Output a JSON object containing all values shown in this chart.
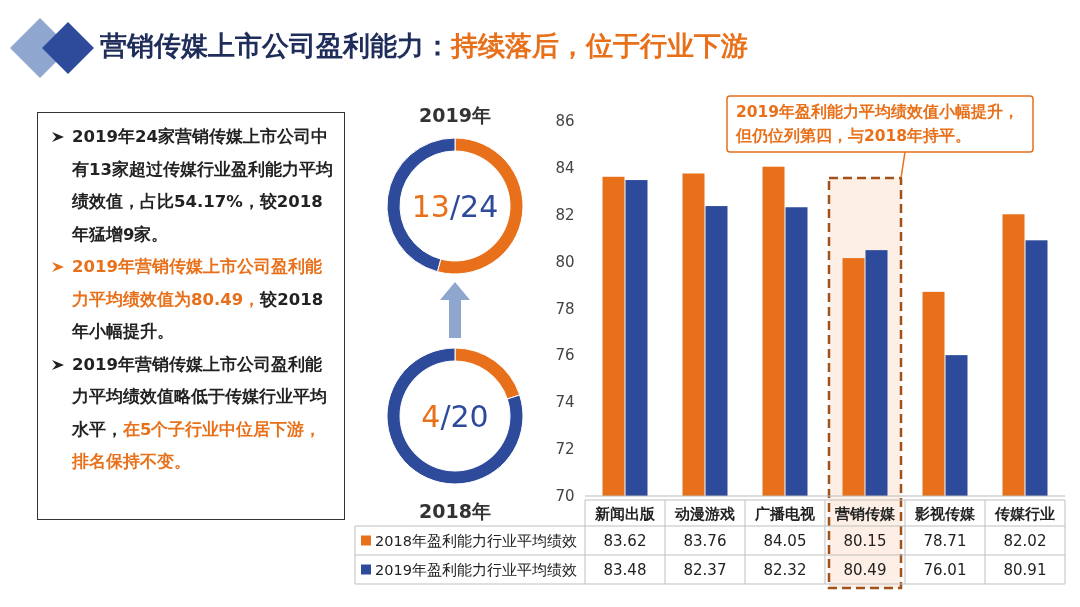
{
  "chart_data": [
    {
      "type": "other",
      "title": "营销传媒上市公司盈利能力：",
      "subtitle": "持续落后，位于行业下游",
      "annotations": [
        "2019年24家营销传媒上市公司中有13家超过传媒行业盈利能力平均绩效值，占比54.17%，较2018年猛增9家。",
        "2019年营销传媒上市公司盈利能力平均绩效值为80.49，",
        "较2018年小幅提升。",
        "2019年营销传媒上市公司盈利能力平均绩效值略低于传媒行业平均水平，",
        "在5个子行业中位居下游，排名保持不变。"
      ]
    },
    {
      "type": "donut",
      "title": "2019年",
      "categories": [
        null,
        null
      ],
      "values": [
        54.17,
        45.83
      ],
      "colors": [
        "#e8701a",
        "#2e4a9b"
      ],
      "annotations": [
        "13",
        "/24"
      ]
    },
    {
      "type": "donut",
      "title": "2018年",
      "categories": [
        null,
        null
      ],
      "values": [
        20,
        80
      ],
      "colors": [
        "#e8701a",
        "#2e4a9b"
      ],
      "annotations": [
        "4",
        "/20"
      ]
    },
    {
      "type": "bar",
      "categories": [
        "新闻出版",
        "动漫游戏",
        "广播电视",
        "营销传媒",
        "影视传媒",
        "传媒行业"
      ],
      "series": [
        {
          "name": "2018年盈利能力行业平均绩效",
          "color": "#e8701a",
          "values": [
            83.62,
            83.76,
            84.05,
            80.15,
            78.71,
            82.02
          ]
        },
        {
          "name": "2019年盈利能力行业平均绩效",
          "color": "#2e4a9b",
          "values": [
            83.48,
            82.37,
            82.32,
            80.49,
            76.01,
            80.91
          ]
        }
      ],
      "ylim": [
        70,
        86
      ],
      "yticks": [
        70,
        72,
        74,
        76,
        78,
        80,
        82,
        84,
        86
      ],
      "data_labels": true,
      "legend": "bottom",
      "bands": [
        {
          "axis": "x",
          "from": "营销传媒",
          "to": "营销传媒",
          "label": "2019年盈利能力平均绩效值小幅提升，但仍位列第四，与2018年持平。",
          "color": "#fbe5d6"
        }
      ]
    }
  ]
}
